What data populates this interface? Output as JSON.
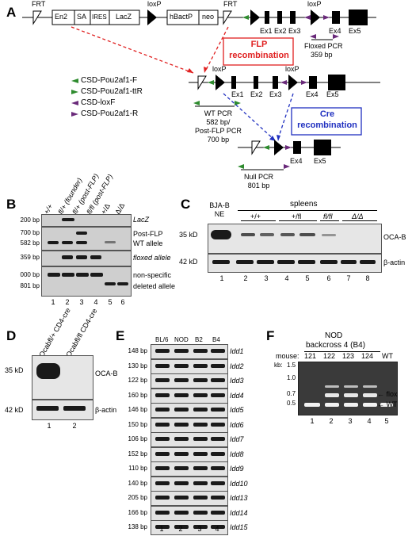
{
  "panel_a": {
    "label": "A",
    "top_construct": {
      "frt1": "FRT",
      "en2": "En2",
      "sa": "SA",
      "ires": "IRES",
      "lacz": "LacZ",
      "loxp1": "loxP",
      "hbactp": "hBactP",
      "neo": "neo",
      "frt2": "FRT",
      "loxp2": "loxP",
      "exons": [
        "Ex1",
        "Ex2",
        "Ex3",
        "Ex4",
        "Ex5"
      ],
      "floxed_pcr": "Floxed PCR",
      "floxed_size": "359 bp"
    },
    "flp_box": [
      "FLP",
      "recombination"
    ],
    "legend": [
      {
        "label": "CSD-Pou2af1-F",
        "color": "#2e8b2e"
      },
      {
        "label": "CSD-Pou2af1-ttR",
        "color": "#2e8b2e"
      },
      {
        "label": "CSD-loxF",
        "color": "#6a2a7a"
      },
      {
        "label": "CSD-Pou2af1-R",
        "color": "#6a2a7a"
      }
    ],
    "middle_construct": {
      "loxp1": "loxP",
      "loxp2": "loxP",
      "exons": [
        "Ex1",
        "Ex2",
        "Ex3",
        "Ex4",
        "Ex5"
      ],
      "wt_pcr": [
        "WT PCR",
        "582 bp/",
        "Post-FLP PCR",
        "700 bp"
      ]
    },
    "cre_box": [
      "Cre",
      "recombination"
    ],
    "bottom_construct": {
      "exons": [
        "Ex4",
        "Ex5"
      ],
      "null_pcr": [
        "Null PCR",
        "801 bp"
      ]
    }
  },
  "panel_b": {
    "label": "B",
    "lane_headers": [
      "+/+",
      "fl/+ (founder)",
      "fl/+ (post-FLP)",
      "fl/fl (post-FLP)",
      "+/Δ",
      "Δ/Δ"
    ],
    "left_sizes": [
      "200 bp",
      "700 bp",
      "582 bp",
      "359 bp",
      "000 bp",
      "801 bp"
    ],
    "right_labels": [
      "LacZ",
      "Post-FLP",
      "WT allele",
      "floxed allele",
      "non-specific",
      "deleted allele"
    ],
    "lanes": [
      "1",
      "2",
      "3",
      "4",
      "5",
      "6"
    ]
  },
  "panel_c": {
    "label": "C",
    "header_bja": [
      "BJA-B",
      "NE"
    ],
    "header_spleens": "spleens",
    "genotypes": [
      "+/+",
      "+/fl",
      "fl/fl",
      "Δ/Δ"
    ],
    "left_sizes": [
      "35 kD",
      "42 kD"
    ],
    "right_labels": [
      "OCA-B",
      "β-actin"
    ],
    "lanes": [
      "1",
      "2",
      "3",
      "4",
      "5",
      "6",
      "7",
      "8"
    ]
  },
  "panel_d": {
    "label": "D",
    "lane_headers": [
      "Ocabfl/+ CD4-cre",
      "Ocabfl/fl CD4-cre"
    ],
    "left_sizes": [
      "35 kD",
      "42 kD"
    ],
    "right_labels": [
      "OCA-B",
      "β-actin"
    ],
    "lanes": [
      "1",
      "2"
    ]
  },
  "panel_e": {
    "label": "E",
    "headers": [
      "BL/6",
      "NOD",
      "B2",
      "B4"
    ],
    "rows": [
      {
        "size": "148 bp",
        "locus": "Idd1"
      },
      {
        "size": "130 bp",
        "locus": "Idd2"
      },
      {
        "size": "122 bp",
        "locus": "Idd3"
      },
      {
        "size": "160 bp",
        "locus": "Idd4"
      },
      {
        "size": "146 bp",
        "locus": "Idd5"
      },
      {
        "size": "150 bp",
        "locus": "Idd6"
      },
      {
        "size": "106 bp",
        "locus": "Idd7"
      },
      {
        "size": "152 bp",
        "locus": "Idd8"
      },
      {
        "size": "110 bp",
        "locus": "Idd9"
      },
      {
        "size": "140 bp",
        "locus": "Idd10"
      },
      {
        "size": "205 bp",
        "locus": "Idd13"
      },
      {
        "size": "166 bp",
        "locus": "Idd14"
      },
      {
        "size": "138 bp",
        "locus": "Idd15"
      }
    ],
    "lanes": [
      "1",
      "2",
      "3",
      "4"
    ]
  },
  "panel_f": {
    "label": "F",
    "title": [
      "NOD",
      "backcross 4 (B4)"
    ],
    "mouse_label": "mouse:",
    "mice": [
      "121",
      "122",
      "123",
      "124",
      "WT"
    ],
    "kb_label": "kb:",
    "ticks": [
      "1.5",
      "1.0",
      "0.7",
      "0.5"
    ],
    "right_labels": [
      "flox",
      "WT"
    ],
    "lanes": [
      "1",
      "2",
      "3",
      "4",
      "5"
    ]
  }
}
